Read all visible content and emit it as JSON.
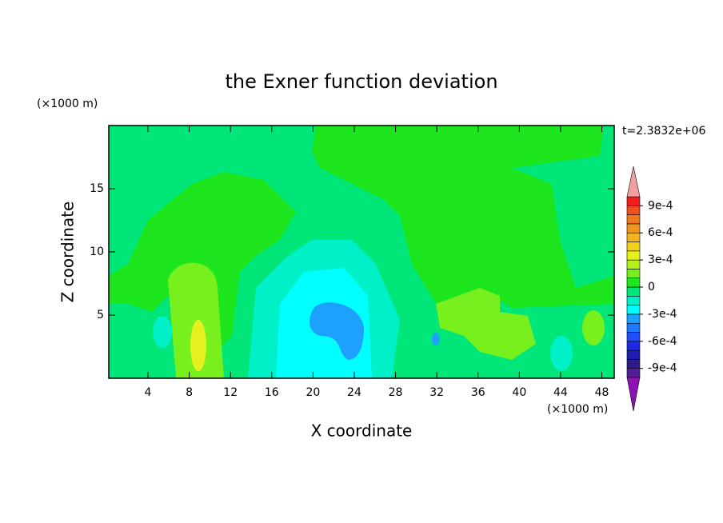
{
  "chart_data": {
    "type": "contour",
    "title": "the Exner function deviation",
    "x_label": "X coordinate",
    "y_label": "Z coordinate",
    "x_unit": "(×1000 m)",
    "y_unit": "(×1000 m)",
    "annotation": "t=2.3832e+06",
    "xlim": [
      0.2,
      49.2
    ],
    "xticks": [
      4,
      8,
      12,
      16,
      20,
      24,
      28,
      32,
      36,
      40,
      44,
      48
    ],
    "ylim": [
      0,
      20
    ],
    "yticks": [
      5,
      10,
      15
    ],
    "colorbar": {
      "levels": [
        -0.001,
        -0.0009,
        -0.0008,
        -0.0007,
        -0.0006,
        -0.0005,
        -0.0004,
        -0.0003,
        -0.0002,
        -0.0001,
        0,
        0.0001,
        0.0002,
        0.0003,
        0.0004,
        0.0005,
        0.0006,
        0.0007,
        0.0008,
        0.0009,
        0.001
      ],
      "colors": [
        "#501e96",
        "#32198c",
        "#1e1eb4",
        "#1e28e6",
        "#1e50ff",
        "#1e78ff",
        "#1ea0ff",
        "#00ffff",
        "#00f0c8",
        "#00e678",
        "#1ee61e",
        "#78f01e",
        "#b4f01e",
        "#e6f01e",
        "#f0d21e",
        "#f0b41e",
        "#f0961e",
        "#f0781e",
        "#f0501e",
        "#f01e1e"
      ],
      "under_color": "#8c14b4",
      "over_color": "#f0a0a0",
      "ticks": [
        {
          "value": 0.0009,
          "label": "9e-4"
        },
        {
          "value": 0.0006,
          "label": "6e-4"
        },
        {
          "value": 0.0003,
          "label": "3e-4"
        },
        0,
        {
          "value": -0.0003,
          "label": "-3e-4"
        },
        {
          "value": -0.0006,
          "label": "-6e-4"
        },
        {
          "value": -0.0009,
          "label": "-9e-4"
        }
      ]
    }
  }
}
